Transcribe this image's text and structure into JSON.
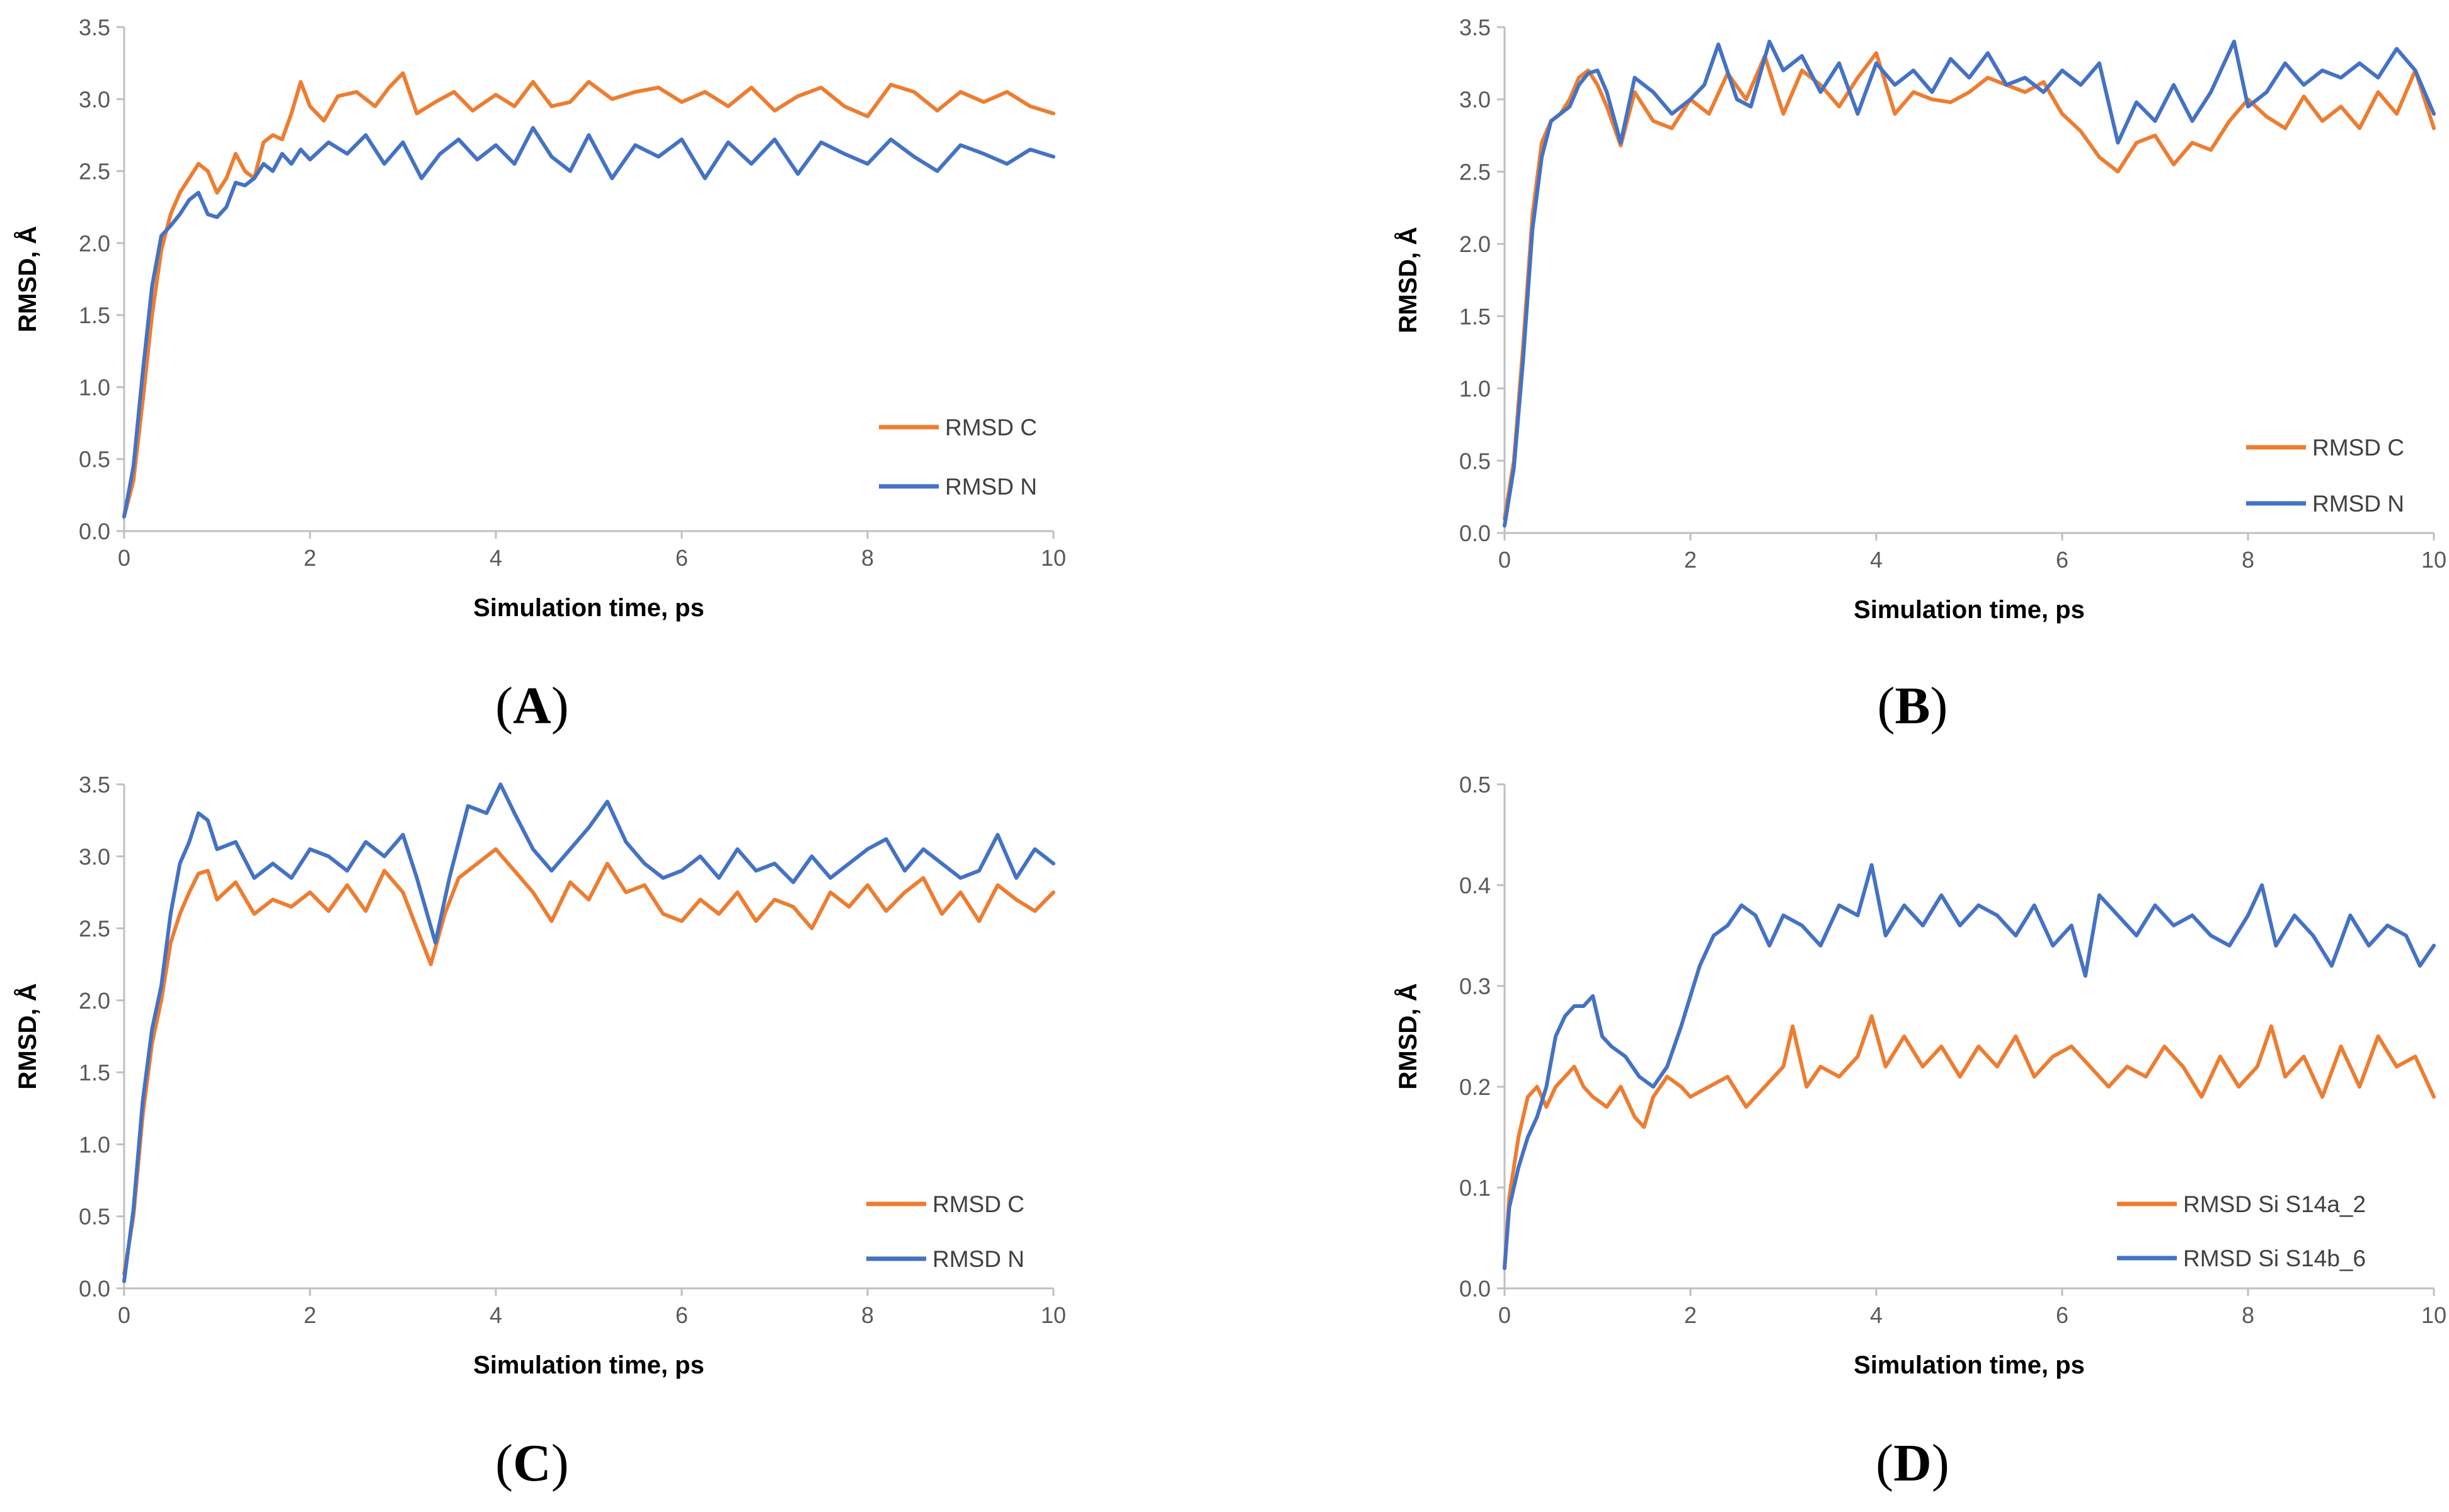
{
  "chart_data": [
    {
      "panel": "(A)",
      "panel_letter": "A",
      "type": "line",
      "xlabel": "Simulation time, ps",
      "ylabel": "RMSD, Å",
      "xlim": [
        0,
        10
      ],
      "ylim": [
        0,
        3.5
      ],
      "xticks": [
        0,
        2,
        4,
        6,
        8,
        10
      ],
      "yticks": [
        0,
        0.5,
        1,
        1.5,
        2,
        2.5,
        3,
        3.5
      ],
      "ytick_labels": [
        "0.0",
        "0.5",
        "1.0",
        "1.5",
        "2.0",
        "2.5",
        "3.0",
        "3.5"
      ],
      "legend_position": "right",
      "series": [
        {
          "name": "RMSD C",
          "color": "#ED7D31",
          "x": [
            0,
            0.1,
            0.2,
            0.3,
            0.4,
            0.5,
            0.6,
            0.7,
            0.8,
            0.9,
            1.0,
            1.1,
            1.2,
            1.3,
            1.4,
            1.5,
            1.6,
            1.7,
            1.8,
            1.9,
            2.0,
            2.15,
            2.3,
            2.5,
            2.7,
            2.85,
            3.0,
            3.15,
            3.35,
            3.55,
            3.75,
            4.0,
            4.2,
            4.4,
            4.6,
            4.8,
            5.0,
            5.25,
            5.5,
            5.75,
            6.0,
            6.25,
            6.5,
            6.75,
            7.0,
            7.25,
            7.5,
            7.75,
            8.0,
            8.25,
            8.5,
            8.75,
            9.0,
            9.25,
            9.5,
            9.75,
            10.0
          ],
          "y": [
            0.1,
            0.35,
            0.9,
            1.5,
            1.95,
            2.2,
            2.35,
            2.45,
            2.55,
            2.5,
            2.35,
            2.45,
            2.62,
            2.5,
            2.45,
            2.7,
            2.75,
            2.72,
            2.9,
            3.12,
            2.95,
            2.85,
            3.02,
            3.05,
            2.95,
            3.08,
            3.18,
            2.9,
            2.98,
            3.05,
            2.92,
            3.03,
            2.95,
            3.12,
            2.95,
            2.98,
            3.12,
            3.0,
            3.05,
            3.08,
            2.98,
            3.05,
            2.95,
            3.08,
            2.92,
            3.02,
            3.08,
            2.95,
            2.88,
            3.1,
            3.05,
            2.92,
            3.05,
            2.98,
            3.05,
            2.95,
            2.9
          ]
        },
        {
          "name": "RMSD N",
          "color": "#4472C4",
          "x": [
            0,
            0.1,
            0.2,
            0.3,
            0.4,
            0.5,
            0.6,
            0.7,
            0.8,
            0.9,
            1.0,
            1.1,
            1.2,
            1.3,
            1.4,
            1.5,
            1.6,
            1.7,
            1.8,
            1.9,
            2.0,
            2.2,
            2.4,
            2.6,
            2.8,
            3.0,
            3.2,
            3.4,
            3.6,
            3.8,
            4.0,
            4.2,
            4.4,
            4.6,
            4.8,
            5.0,
            5.25,
            5.5,
            5.75,
            6.0,
            6.25,
            6.5,
            6.75,
            7.0,
            7.25,
            7.5,
            7.75,
            8.0,
            8.25,
            8.5,
            8.75,
            9.0,
            9.25,
            9.5,
            9.75,
            10.0
          ],
          "y": [
            0.1,
            0.45,
            1.1,
            1.7,
            2.05,
            2.12,
            2.2,
            2.3,
            2.35,
            2.2,
            2.18,
            2.25,
            2.42,
            2.4,
            2.45,
            2.55,
            2.5,
            2.62,
            2.55,
            2.65,
            2.58,
            2.7,
            2.62,
            2.75,
            2.55,
            2.7,
            2.45,
            2.62,
            2.72,
            2.58,
            2.68,
            2.55,
            2.8,
            2.6,
            2.5,
            2.75,
            2.45,
            2.68,
            2.6,
            2.72,
            2.45,
            2.7,
            2.55,
            2.72,
            2.48,
            2.7,
            2.62,
            2.55,
            2.72,
            2.6,
            2.5,
            2.68,
            2.62,
            2.55,
            2.65,
            2.6
          ]
        }
      ]
    },
    {
      "panel": "(B)",
      "panel_letter": "B",
      "type": "line",
      "xlabel": "Simulation time, ps",
      "ylabel": "RMSD, Å",
      "xlim": [
        0,
        10
      ],
      "ylim": [
        0,
        3.5
      ],
      "xticks": [
        0,
        2,
        4,
        6,
        8,
        10
      ],
      "yticks": [
        0,
        0.5,
        1,
        1.5,
        2,
        2.5,
        3,
        3.5
      ],
      "ytick_labels": [
        "0.0",
        "0.5",
        "1.0",
        "1.5",
        "2.0",
        "2.5",
        "3.0",
        "3.5"
      ],
      "legend_position": "right",
      "series": [
        {
          "name": "RMSD C",
          "color": "#ED7D31",
          "x": [
            0,
            0.1,
            0.2,
            0.3,
            0.4,
            0.5,
            0.6,
            0.7,
            0.8,
            0.9,
            1.0,
            1.1,
            1.25,
            1.4,
            1.6,
            1.8,
            2.0,
            2.2,
            2.4,
            2.6,
            2.8,
            3.0,
            3.2,
            3.4,
            3.6,
            3.8,
            4.0,
            4.2,
            4.4,
            4.6,
            4.8,
            5.0,
            5.2,
            5.4,
            5.6,
            5.8,
            6.0,
            6.2,
            6.4,
            6.6,
            6.8,
            7.0,
            7.2,
            7.4,
            7.6,
            7.8,
            8.0,
            8.2,
            8.4,
            8.6,
            8.8,
            9.0,
            9.2,
            9.4,
            9.6,
            9.8,
            10.0
          ],
          "y": [
            0.1,
            0.5,
            1.3,
            2.2,
            2.7,
            2.85,
            2.9,
            3.0,
            3.15,
            3.2,
            3.1,
            2.95,
            2.68,
            3.05,
            2.85,
            2.8,
            3.0,
            2.9,
            3.18,
            3.0,
            3.3,
            2.9,
            3.2,
            3.1,
            2.95,
            3.15,
            3.32,
            2.9,
            3.05,
            3.0,
            2.98,
            3.05,
            3.15,
            3.1,
            3.05,
            3.12,
            2.9,
            2.78,
            2.6,
            2.5,
            2.7,
            2.75,
            2.55,
            2.7,
            2.65,
            2.85,
            3.0,
            2.88,
            2.8,
            3.02,
            2.85,
            2.95,
            2.8,
            3.05,
            2.9,
            3.2,
            2.8
          ]
        },
        {
          "name": "RMSD N",
          "color": "#4472C4",
          "x": [
            0,
            0.1,
            0.2,
            0.3,
            0.4,
            0.5,
            0.6,
            0.7,
            0.8,
            0.9,
            1.0,
            1.1,
            1.25,
            1.4,
            1.6,
            1.8,
            2.0,
            2.15,
            2.3,
            2.5,
            2.65,
            2.85,
            3.0,
            3.2,
            3.4,
            3.6,
            3.8,
            4.0,
            4.2,
            4.4,
            4.6,
            4.8,
            5.0,
            5.2,
            5.4,
            5.6,
            5.8,
            6.0,
            6.2,
            6.4,
            6.6,
            6.8,
            7.0,
            7.2,
            7.4,
            7.6,
            7.85,
            8.0,
            8.2,
            8.4,
            8.6,
            8.8,
            9.0,
            9.2,
            9.4,
            9.6,
            9.8,
            10.0
          ],
          "y": [
            0.05,
            0.45,
            1.2,
            2.1,
            2.6,
            2.85,
            2.9,
            2.95,
            3.1,
            3.18,
            3.2,
            3.05,
            2.7,
            3.15,
            3.05,
            2.9,
            3.0,
            3.1,
            3.38,
            3.0,
            2.95,
            3.4,
            3.2,
            3.3,
            3.05,
            3.25,
            2.9,
            3.25,
            3.1,
            3.2,
            3.05,
            3.28,
            3.15,
            3.32,
            3.1,
            3.15,
            3.05,
            3.2,
            3.1,
            3.25,
            2.7,
            2.98,
            2.85,
            3.1,
            2.85,
            3.05,
            3.4,
            2.95,
            3.05,
            3.25,
            3.1,
            3.2,
            3.15,
            3.25,
            3.15,
            3.35,
            3.2,
            2.9
          ]
        }
      ]
    },
    {
      "panel": "(C)",
      "panel_letter": "C",
      "type": "line",
      "xlabel": "Simulation time, ps",
      "ylabel": "RMSD, Å",
      "xlim": [
        0,
        10
      ],
      "ylim": [
        0,
        3.5
      ],
      "xticks": [
        0,
        2,
        4,
        6,
        8,
        10
      ],
      "yticks": [
        0,
        0.5,
        1,
        1.5,
        2,
        2.5,
        3,
        3.5
      ],
      "ytick_labels": [
        "0.0",
        "0.5",
        "1.0",
        "1.5",
        "2.0",
        "2.5",
        "3.0",
        "3.5"
      ],
      "legend_position": "bottom-right",
      "series": [
        {
          "name": "RMSD C",
          "color": "#ED7D31",
          "x": [
            0,
            0.1,
            0.2,
            0.3,
            0.4,
            0.5,
            0.6,
            0.7,
            0.8,
            0.9,
            1.0,
            1.2,
            1.4,
            1.6,
            1.8,
            2.0,
            2.2,
            2.4,
            2.6,
            2.8,
            3.0,
            3.15,
            3.3,
            3.45,
            3.6,
            3.8,
            4.0,
            4.2,
            4.4,
            4.6,
            4.8,
            5.0,
            5.2,
            5.4,
            5.6,
            5.8,
            6.0,
            6.2,
            6.4,
            6.6,
            6.8,
            7.0,
            7.2,
            7.4,
            7.6,
            7.8,
            8.0,
            8.2,
            8.4,
            8.6,
            8.8,
            9.0,
            9.2,
            9.4,
            9.6,
            9.8,
            10.0
          ],
          "y": [
            0.1,
            0.5,
            1.2,
            1.7,
            2.0,
            2.4,
            2.6,
            2.75,
            2.88,
            2.9,
            2.7,
            2.82,
            2.6,
            2.7,
            2.65,
            2.75,
            2.62,
            2.8,
            2.62,
            2.9,
            2.75,
            2.5,
            2.25,
            2.6,
            2.85,
            2.95,
            3.05,
            2.9,
            2.75,
            2.55,
            2.82,
            2.7,
            2.95,
            2.75,
            2.8,
            2.6,
            2.55,
            2.7,
            2.6,
            2.75,
            2.55,
            2.7,
            2.65,
            2.5,
            2.75,
            2.65,
            2.8,
            2.62,
            2.75,
            2.85,
            2.6,
            2.75,
            2.55,
            2.8,
            2.7,
            2.62,
            2.75
          ]
        },
        {
          "name": "RMSD N",
          "color": "#4472C4",
          "x": [
            0,
            0.1,
            0.2,
            0.3,
            0.4,
            0.5,
            0.6,
            0.7,
            0.8,
            0.9,
            1.0,
            1.2,
            1.4,
            1.6,
            1.8,
            2.0,
            2.2,
            2.4,
            2.6,
            2.8,
            3.0,
            3.15,
            3.35,
            3.5,
            3.7,
            3.9,
            4.05,
            4.2,
            4.4,
            4.6,
            4.8,
            5.0,
            5.2,
            5.4,
            5.6,
            5.8,
            6.0,
            6.2,
            6.4,
            6.6,
            6.8,
            7.0,
            7.2,
            7.4,
            7.6,
            7.8,
            8.0,
            8.2,
            8.4,
            8.6,
            8.8,
            9.0,
            9.2,
            9.4,
            9.6,
            9.8,
            10.0
          ],
          "y": [
            0.05,
            0.55,
            1.3,
            1.8,
            2.1,
            2.6,
            2.95,
            3.1,
            3.3,
            3.25,
            3.05,
            3.1,
            2.85,
            2.95,
            2.85,
            3.05,
            3.0,
            2.9,
            3.1,
            3.0,
            3.15,
            2.85,
            2.4,
            2.85,
            3.35,
            3.3,
            3.5,
            3.3,
            3.05,
            2.9,
            3.05,
            3.2,
            3.38,
            3.1,
            2.95,
            2.85,
            2.9,
            3.0,
            2.85,
            3.05,
            2.9,
            2.95,
            2.82,
            3.0,
            2.85,
            2.95,
            3.05,
            3.12,
            2.9,
            3.05,
            2.95,
            2.85,
            2.9,
            3.15,
            2.85,
            3.05,
            2.95
          ]
        }
      ]
    },
    {
      "panel": "(D)",
      "panel_letter": "D",
      "type": "line",
      "xlabel": "Simulation time, ps",
      "ylabel": "RMSD, Å",
      "xlim": [
        0,
        10
      ],
      "ylim": [
        0,
        0.5
      ],
      "xticks": [
        0,
        2,
        4,
        6,
        8,
        10
      ],
      "yticks": [
        0,
        0.1,
        0.2,
        0.3,
        0.4,
        0.5
      ],
      "ytick_labels": [
        "0.0",
        "0.1",
        "0.2",
        "0.3",
        "0.4",
        "0.5"
      ],
      "legend_position": "bottom-right",
      "series": [
        {
          "name": "RMSD Si S14a_2",
          "color": "#ED7D31",
          "x": [
            0,
            0.05,
            0.15,
            0.25,
            0.35,
            0.45,
            0.55,
            0.65,
            0.75,
            0.85,
            0.95,
            1.1,
            1.25,
            1.4,
            1.5,
            1.6,
            1.75,
            1.9,
            2.0,
            2.2,
            2.4,
            2.6,
            2.8,
            3.0,
            3.1,
            3.25,
            3.4,
            3.6,
            3.8,
            3.95,
            4.1,
            4.3,
            4.5,
            4.7,
            4.9,
            5.1,
            5.3,
            5.5,
            5.7,
            5.9,
            6.1,
            6.3,
            6.5,
            6.7,
            6.9,
            7.1,
            7.3,
            7.5,
            7.7,
            7.9,
            8.1,
            8.25,
            8.4,
            8.6,
            8.8,
            9.0,
            9.2,
            9.4,
            9.6,
            9.8,
            10.0
          ],
          "y": [
            0.02,
            0.09,
            0.15,
            0.19,
            0.2,
            0.18,
            0.2,
            0.21,
            0.22,
            0.2,
            0.19,
            0.18,
            0.2,
            0.17,
            0.16,
            0.19,
            0.21,
            0.2,
            0.19,
            0.2,
            0.21,
            0.18,
            0.2,
            0.22,
            0.26,
            0.2,
            0.22,
            0.21,
            0.23,
            0.27,
            0.22,
            0.25,
            0.22,
            0.24,
            0.21,
            0.24,
            0.22,
            0.25,
            0.21,
            0.23,
            0.24,
            0.22,
            0.2,
            0.22,
            0.21,
            0.24,
            0.22,
            0.19,
            0.23,
            0.2,
            0.22,
            0.26,
            0.21,
            0.23,
            0.19,
            0.24,
            0.2,
            0.25,
            0.22,
            0.23,
            0.19
          ]
        },
        {
          "name": "RMSD Si S14b_6",
          "color": "#4472C4",
          "x": [
            0,
            0.05,
            0.15,
            0.25,
            0.35,
            0.45,
            0.55,
            0.65,
            0.75,
            0.85,
            0.95,
            1.05,
            1.15,
            1.3,
            1.45,
            1.6,
            1.75,
            1.9,
            2.0,
            2.1,
            2.25,
            2.4,
            2.55,
            2.7,
            2.85,
            3.0,
            3.2,
            3.4,
            3.6,
            3.8,
            3.95,
            4.1,
            4.3,
            4.5,
            4.7,
            4.9,
            5.1,
            5.3,
            5.5,
            5.7,
            5.9,
            6.1,
            6.25,
            6.4,
            6.6,
            6.8,
            7.0,
            7.2,
            7.4,
            7.6,
            7.8,
            8.0,
            8.15,
            8.3,
            8.5,
            8.7,
            8.9,
            9.1,
            9.3,
            9.5,
            9.7,
            9.85,
            10.0
          ],
          "y": [
            0.02,
            0.08,
            0.12,
            0.15,
            0.17,
            0.2,
            0.25,
            0.27,
            0.28,
            0.28,
            0.29,
            0.25,
            0.24,
            0.23,
            0.21,
            0.2,
            0.22,
            0.26,
            0.29,
            0.32,
            0.35,
            0.36,
            0.38,
            0.37,
            0.34,
            0.37,
            0.36,
            0.34,
            0.38,
            0.37,
            0.42,
            0.35,
            0.38,
            0.36,
            0.39,
            0.36,
            0.38,
            0.37,
            0.35,
            0.38,
            0.34,
            0.36,
            0.31,
            0.39,
            0.37,
            0.35,
            0.38,
            0.36,
            0.37,
            0.35,
            0.34,
            0.37,
            0.4,
            0.34,
            0.37,
            0.35,
            0.32,
            0.37,
            0.34,
            0.36,
            0.35,
            0.32,
            0.34
          ]
        }
      ]
    }
  ]
}
